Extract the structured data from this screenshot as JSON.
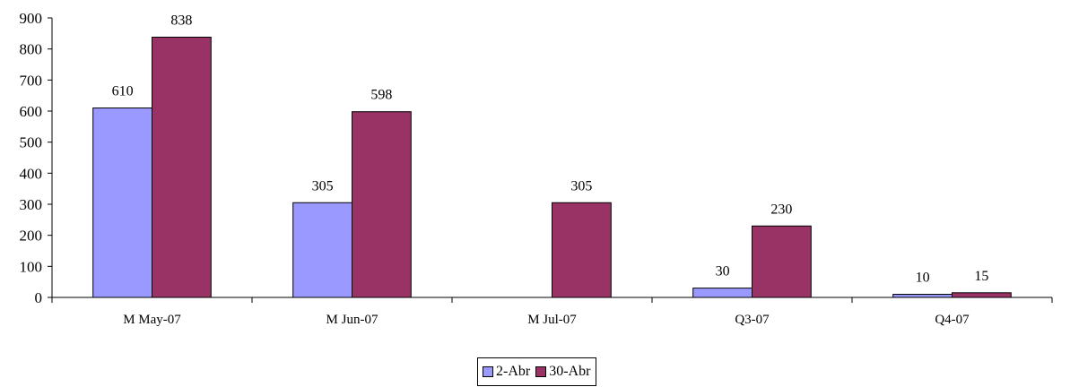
{
  "chart_data": {
    "type": "bar",
    "categories": [
      "M May-07",
      "M Jun-07",
      "M Jul-07",
      "Q3-07",
      "Q4-07"
    ],
    "series": [
      {
        "name": "2-Abr",
        "values": [
          610,
          305,
          null,
          30,
          10
        ],
        "labels": [
          "610",
          "305",
          "",
          "30",
          "10"
        ],
        "color": "#9999ff"
      },
      {
        "name": "30-Abr",
        "values": [
          838,
          598,
          305,
          230,
          15
        ],
        "labels": [
          "838",
          "598",
          "305",
          "230",
          "15"
        ],
        "color": "#993366"
      }
    ],
    "ylim": [
      0,
      900
    ],
    "yticks": [
      "0",
      "100",
      "200",
      "300",
      "400",
      "500",
      "600",
      "700",
      "800",
      "900"
    ],
    "grid": false,
    "legend_position": "bottom"
  }
}
